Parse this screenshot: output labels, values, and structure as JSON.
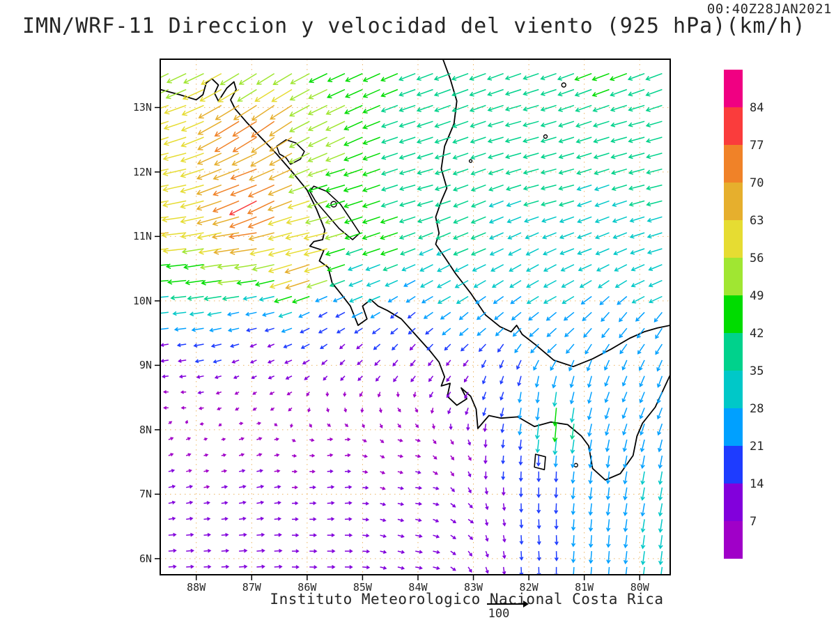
{
  "title": "IMN/WRF-11 Direccion y velocidad del viento (925 hPa)(km/h)",
  "timestamp": "00:40Z28JAN2021",
  "footer": {
    "text": "Instituto Meteorologico Nacional Costa Rica"
  },
  "reference_vector": {
    "label": "100",
    "value_kmh": 100
  },
  "axes": {
    "lat_ticks": [
      "13N",
      "12N",
      "11N",
      "10N",
      "9N",
      "8N",
      "7N",
      "6N"
    ],
    "lat_values": [
      13,
      12,
      11,
      10,
      9,
      8,
      7,
      6
    ],
    "lon_ticks": [
      "88W",
      "87W",
      "86W",
      "85W",
      "84W",
      "83W",
      "82W",
      "81W",
      "80W"
    ],
    "lon_values": [
      -88,
      -87,
      -86,
      -85,
      -84,
      -83,
      -82,
      -81,
      -80
    ],
    "lon_range": [
      -88.65,
      -79.45
    ],
    "lat_range": [
      5.75,
      13.75
    ]
  },
  "colorbar": {
    "units": "km/h",
    "thresholds": [
      7,
      14,
      21,
      28,
      35,
      42,
      49,
      56,
      63,
      70,
      77,
      84
    ],
    "colors": [
      "#a000c8",
      "#8200dc",
      "#1e3cff",
      "#00a0ff",
      "#00c8c8",
      "#00d28c",
      "#00dc00",
      "#a0e632",
      "#e6dc32",
      "#e6af2d",
      "#f08228",
      "#fa3c3c",
      "#f00082"
    ]
  },
  "chart_data": {
    "type": "quiver-map",
    "title": "IMN/WRF-11 Direccion y velocidad del viento (925 hPa)(km/h)",
    "model": "IMN/WRF-11",
    "variable": "wind direction and speed",
    "level": "925 hPa",
    "units": "km/h",
    "valid_time": "00:40Z28JAN2021",
    "legend_position": "right",
    "extent": {
      "lon_min": -88.65,
      "lon_max": -79.45,
      "lat_min": 5.75,
      "lat_max": 13.75
    },
    "grid": {
      "lon_start": -88.5,
      "lon_step": 0.318,
      "cols": 29,
      "lat_start": 5.87,
      "lat_step": 0.247,
      "rows": 32
    },
    "speed_bins_kmh": [
      7,
      14,
      21,
      28,
      35,
      42,
      49,
      56,
      63,
      70,
      77,
      84
    ],
    "wind_control_points_lon_lat_u_v": [
      [
        -88.5,
        13.6,
        -46,
        -22
      ],
      [
        -86.8,
        13.6,
        -42,
        -26
      ],
      [
        -85.0,
        13.6,
        -40,
        -18
      ],
      [
        -83.0,
        13.6,
        -38,
        -14
      ],
      [
        -80.5,
        13.6,
        -40,
        -15
      ],
      [
        -79.5,
        13.6,
        -38,
        -14
      ],
      [
        -88.5,
        12.8,
        -55,
        -18
      ],
      [
        -87.1,
        12.75,
        -62,
        -38
      ],
      [
        -86.6,
        12.75,
        -58,
        -40
      ],
      [
        -85.5,
        12.7,
        -46,
        -22
      ],
      [
        -84.0,
        12.6,
        -37,
        -12
      ],
      [
        -82.0,
        12.6,
        -36,
        -10
      ],
      [
        -80.0,
        12.6,
        -37,
        -10
      ],
      [
        -88.5,
        12.0,
        -58,
        -12
      ],
      [
        -87.0,
        11.9,
        -66,
        -24
      ],
      [
        -86.85,
        11.55,
        -70,
        -36
      ],
      [
        -85.4,
        11.8,
        -46,
        -14
      ],
      [
        -83.8,
        11.8,
        -36,
        -10
      ],
      [
        -81.5,
        11.8,
        -35,
        -9
      ],
      [
        -79.6,
        11.8,
        -36,
        -9
      ],
      [
        -88.5,
        11.0,
        -64,
        -6
      ],
      [
        -87.0,
        11.0,
        -70,
        -10
      ],
      [
        -85.9,
        10.95,
        -60,
        -14
      ],
      [
        -84.6,
        11.0,
        -42,
        -14
      ],
      [
        -83.0,
        11.0,
        -34,
        -14
      ],
      [
        -81.0,
        11.0,
        -32,
        -12
      ],
      [
        -79.6,
        11.0,
        -33,
        -10
      ],
      [
        -88.5,
        10.4,
        -46,
        -4
      ],
      [
        -87.2,
        10.4,
        -52,
        -6
      ],
      [
        -85.95,
        10.5,
        -62,
        -20
      ],
      [
        -84.8,
        10.3,
        -30,
        -12
      ],
      [
        -83.3,
        10.3,
        -30,
        -16
      ],
      [
        -81.5,
        10.2,
        -28,
        -15
      ],
      [
        -79.7,
        10.2,
        -30,
        -13
      ],
      [
        -88.5,
        9.85,
        -28,
        -3
      ],
      [
        -87.0,
        9.8,
        -22,
        -5
      ],
      [
        -85.6,
        9.75,
        -16,
        -9
      ],
      [
        -84.3,
        9.7,
        -13,
        -11
      ],
      [
        -83.0,
        9.7,
        -18,
        -15
      ],
      [
        -81.5,
        9.6,
        -20,
        -18
      ],
      [
        -80.2,
        9.6,
        -16,
        -20
      ],
      [
        -79.6,
        9.6,
        -14,
        -22
      ],
      [
        -88.5,
        9.2,
        -13,
        -2
      ],
      [
        -86.8,
        9.2,
        -9,
        -4
      ],
      [
        -85.3,
        9.15,
        -7,
        -7
      ],
      [
        -84.2,
        9.1,
        -8,
        -10
      ],
      [
        -88.5,
        8.5,
        -5,
        0
      ],
      [
        -87.0,
        8.5,
        -3,
        -2
      ],
      [
        -85.5,
        8.4,
        1,
        -3
      ],
      [
        -84.3,
        8.3,
        3,
        -4
      ],
      [
        -88.5,
        7.8,
        5,
        2
      ],
      [
        -87.0,
        7.8,
        6,
        2
      ],
      [
        -85.5,
        7.7,
        7,
        1
      ],
      [
        -84.2,
        7.7,
        6,
        -1
      ],
      [
        -88.5,
        7.0,
        10,
        2
      ],
      [
        -87.0,
        7.0,
        11,
        2
      ],
      [
        -85.5,
        6.9,
        11,
        1
      ],
      [
        -84.0,
        7.0,
        9,
        -1
      ],
      [
        -88.5,
        6.1,
        13,
        1
      ],
      [
        -87.0,
        6.0,
        14,
        1
      ],
      [
        -85.5,
        6.0,
        13,
        0
      ],
      [
        -84.0,
        6.1,
        11,
        -2
      ],
      [
        -83.2,
        6.6,
        8,
        -5
      ],
      [
        -83.4,
        8.9,
        -6,
        -8
      ],
      [
        -82.6,
        8.8,
        -5,
        -14
      ],
      [
        -81.9,
        8.5,
        -3,
        -22
      ],
      [
        -81.55,
        8.25,
        -4,
        -44
      ],
      [
        -81.0,
        8.7,
        -6,
        -24
      ],
      [
        -80.3,
        8.9,
        -8,
        -20
      ],
      [
        -79.6,
        8.8,
        -9,
        -24
      ],
      [
        -82.6,
        7.6,
        -1,
        -14
      ],
      [
        -81.8,
        7.3,
        0,
        -20
      ],
      [
        -80.8,
        7.3,
        -3,
        -26
      ],
      [
        -79.8,
        7.3,
        -5,
        -28
      ],
      [
        -82.8,
        6.6,
        2,
        -9
      ],
      [
        -81.8,
        6.3,
        1,
        -18
      ],
      [
        -80.8,
        6.2,
        -2,
        -26
      ],
      [
        -79.7,
        6.1,
        -4,
        -30
      ],
      [
        -83.3,
        7.6,
        4,
        -5
      ]
    ]
  },
  "map": {
    "grid_color": "#e8a33d",
    "coast_color": "#000000",
    "outlines_open": [
      [
        [
          -88.65,
          13.28
        ],
        [
          -88.3,
          13.2
        ],
        [
          -88.0,
          13.12
        ],
        [
          -87.88,
          13.2
        ],
        [
          -87.82,
          13.38
        ],
        [
          -87.72,
          13.45
        ],
        [
          -87.6,
          13.35
        ],
        [
          -87.67,
          13.22
        ],
        [
          -87.6,
          13.1
        ],
        [
          -87.45,
          13.3
        ],
        [
          -87.32,
          13.4
        ],
        [
          -87.28,
          13.28
        ],
        [
          -87.38,
          13.12
        ],
        [
          -87.3,
          12.98
        ],
        [
          -87.1,
          12.78
        ],
        [
          -86.85,
          12.55
        ],
        [
          -86.55,
          12.28
        ],
        [
          -86.25,
          11.98
        ],
        [
          -86.0,
          11.72
        ],
        [
          -85.83,
          11.42
        ],
        [
          -85.68,
          11.1
        ],
        [
          -85.72,
          10.95
        ],
        [
          -85.88,
          10.92
        ],
        [
          -85.95,
          10.85
        ],
        [
          -85.7,
          10.78
        ],
        [
          -85.78,
          10.62
        ],
        [
          -85.62,
          10.52
        ],
        [
          -85.55,
          10.28
        ],
        [
          -85.4,
          10.12
        ],
        [
          -85.22,
          9.92
        ],
        [
          -85.08,
          9.62
        ],
        [
          -84.92,
          9.72
        ],
        [
          -85.0,
          9.92
        ],
        [
          -84.85,
          10.02
        ],
        [
          -84.72,
          9.92
        ],
        [
          -84.55,
          9.85
        ],
        [
          -84.3,
          9.72
        ],
        [
          -84.05,
          9.48
        ],
        [
          -83.78,
          9.22
        ],
        [
          -83.62,
          9.05
        ],
        [
          -83.52,
          8.82
        ],
        [
          -83.58,
          8.68
        ],
        [
          -83.42,
          8.72
        ],
        [
          -83.47,
          8.52
        ],
        [
          -83.3,
          8.38
        ],
        [
          -83.12,
          8.48
        ],
        [
          -83.22,
          8.65
        ],
        [
          -83.05,
          8.52
        ],
        [
          -82.95,
          8.32
        ],
        [
          -82.92,
          8.02
        ],
        [
          -82.72,
          8.22
        ],
        [
          -82.5,
          8.18
        ],
        [
          -82.2,
          8.2
        ],
        [
          -81.9,
          8.05
        ],
        [
          -81.6,
          8.12
        ],
        [
          -81.3,
          8.08
        ],
        [
          -81.05,
          7.9
        ],
        [
          -80.92,
          7.75
        ],
        [
          -80.85,
          7.4
        ],
        [
          -80.62,
          7.22
        ],
        [
          -80.35,
          7.32
        ],
        [
          -80.12,
          7.6
        ],
        [
          -80.05,
          7.9
        ],
        [
          -79.95,
          8.1
        ],
        [
          -79.72,
          8.35
        ],
        [
          -79.52,
          8.72
        ],
        [
          -79.45,
          8.85
        ]
      ],
      [
        [
          -83.55,
          13.75
        ],
        [
          -83.42,
          13.45
        ],
        [
          -83.3,
          13.1
        ],
        [
          -83.35,
          12.75
        ],
        [
          -83.52,
          12.4
        ],
        [
          -83.58,
          12.05
        ],
        [
          -83.48,
          11.75
        ],
        [
          -83.58,
          11.55
        ],
        [
          -83.68,
          11.3
        ],
        [
          -83.62,
          11.05
        ],
        [
          -83.68,
          10.88
        ],
        [
          -83.52,
          10.68
        ],
        [
          -83.32,
          10.42
        ],
        [
          -83.05,
          10.12
        ],
        [
          -82.78,
          9.78
        ],
        [
          -82.52,
          9.6
        ],
        [
          -82.32,
          9.52
        ],
        [
          -82.22,
          9.62
        ],
        [
          -82.12,
          9.48
        ],
        [
          -81.88,
          9.32
        ],
        [
          -81.55,
          9.08
        ],
        [
          -81.2,
          8.98
        ],
        [
          -80.85,
          9.1
        ],
        [
          -80.52,
          9.25
        ],
        [
          -80.18,
          9.42
        ],
        [
          -79.92,
          9.52
        ],
        [
          -79.68,
          9.58
        ],
        [
          -79.45,
          9.62
        ]
      ]
    ],
    "outlines_closed": [
      [
        [
          -86.55,
          12.4
        ],
        [
          -86.38,
          12.5
        ],
        [
          -86.2,
          12.45
        ],
        [
          -86.05,
          12.32
        ],
        [
          -86.12,
          12.2
        ],
        [
          -86.3,
          12.12
        ],
        [
          -86.38,
          12.22
        ],
        [
          -86.5,
          12.28
        ]
      ],
      [
        [
          -85.88,
          11.78
        ],
        [
          -85.65,
          11.7
        ],
        [
          -85.4,
          11.5
        ],
        [
          -85.18,
          11.22
        ],
        [
          -85.05,
          11.05
        ],
        [
          -85.18,
          10.95
        ],
        [
          -85.42,
          11.12
        ],
        [
          -85.65,
          11.35
        ],
        [
          -85.85,
          11.55
        ],
        [
          -85.95,
          11.7
        ]
      ],
      [
        [
          -81.88,
          7.62
        ],
        [
          -81.7,
          7.58
        ],
        [
          -81.72,
          7.38
        ],
        [
          -81.9,
          7.42
        ]
      ]
    ],
    "islands": [
      {
        "lon": -81.37,
        "lat": 13.35,
        "r": 3
      },
      {
        "lon": -81.7,
        "lat": 12.55,
        "r": 2.5
      },
      {
        "lon": -83.05,
        "lat": 12.17,
        "r": 2
      },
      {
        "lon": -85.52,
        "lat": 11.5,
        "r": 4
      },
      {
        "lon": -81.15,
        "lat": 7.45,
        "r": 2.5
      }
    ]
  }
}
